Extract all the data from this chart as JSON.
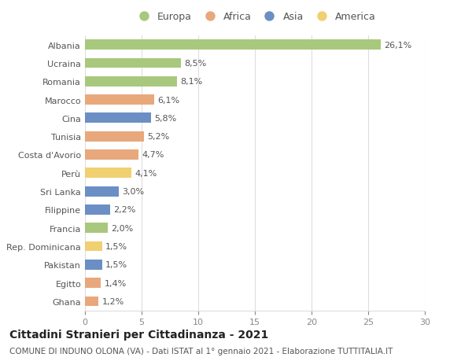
{
  "countries": [
    "Albania",
    "Ucraina",
    "Romania",
    "Marocco",
    "Cina",
    "Tunisia",
    "Costa d'Avorio",
    "Perù",
    "Sri Lanka",
    "Filippine",
    "Francia",
    "Rep. Dominicana",
    "Pakistan",
    "Egitto",
    "Ghana"
  ],
  "values": [
    26.1,
    8.5,
    8.1,
    6.1,
    5.8,
    5.2,
    4.7,
    4.1,
    3.0,
    2.2,
    2.0,
    1.5,
    1.5,
    1.4,
    1.2
  ],
  "labels": [
    "26,1%",
    "8,5%",
    "8,1%",
    "6,1%",
    "5,8%",
    "5,2%",
    "4,7%",
    "4,1%",
    "3,0%",
    "2,2%",
    "2,0%",
    "1,5%",
    "1,5%",
    "1,4%",
    "1,2%"
  ],
  "regions": [
    "Europa",
    "Europa",
    "Europa",
    "Africa",
    "Asia",
    "Africa",
    "Africa",
    "America",
    "Asia",
    "Asia",
    "Europa",
    "America",
    "Asia",
    "Africa",
    "Africa"
  ],
  "region_colors": {
    "Europa": "#a8c87e",
    "Africa": "#e8a87c",
    "Asia": "#6b8fc4",
    "America": "#f0d070"
  },
  "legend_order": [
    "Europa",
    "Africa",
    "Asia",
    "America"
  ],
  "title": "Cittadini Stranieri per Cittadinanza - 2021",
  "subtitle": "COMUNE DI INDUNO OLONA (VA) - Dati ISTAT al 1° gennaio 2021 - Elaborazione TUTTITALIA.IT",
  "xlim": [
    0,
    30
  ],
  "xticks": [
    0,
    5,
    10,
    15,
    20,
    25,
    30
  ],
  "background_color": "#ffffff",
  "grid_color": "#dddddd",
  "bar_height": 0.55,
  "label_fontsize": 8,
  "tick_fontsize": 8,
  "title_fontsize": 10,
  "subtitle_fontsize": 7.5
}
